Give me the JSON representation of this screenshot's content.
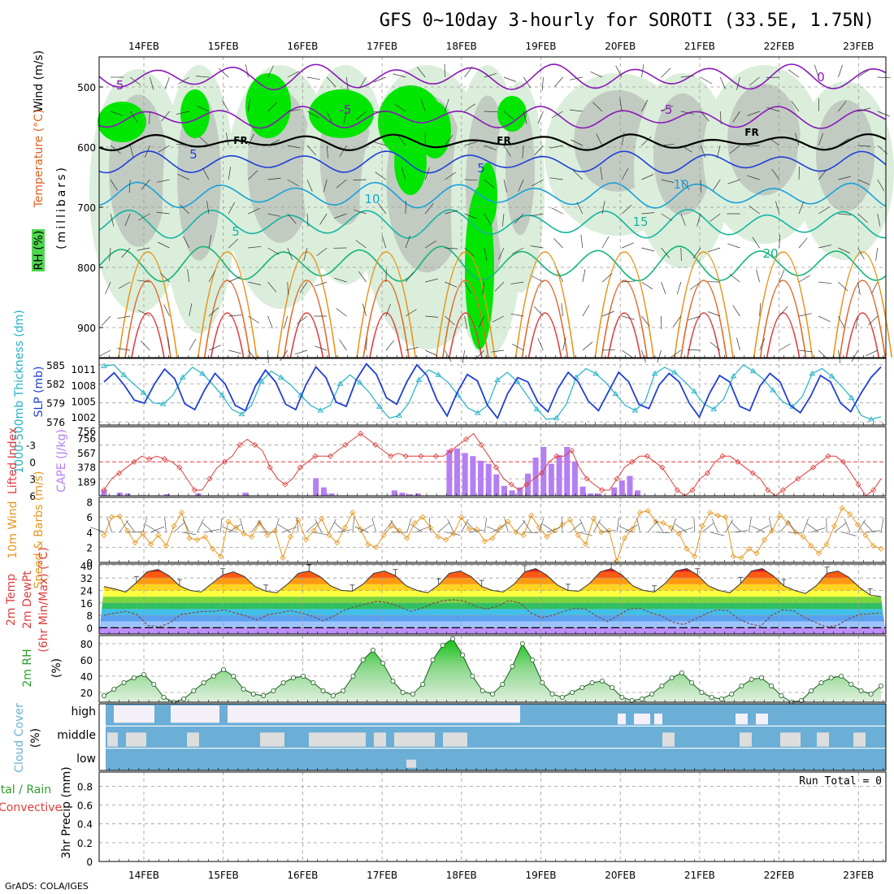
{
  "title": "GFS 0~10day 3-hourly for SOROTI (33.5E, 1.75N)",
  "footer": "GrADS: COLA/IGES",
  "colors": {
    "rh_light": "#dbeedb",
    "rh_mid": "#b8d8b8",
    "rh_gray": "#c2cbc2",
    "rh_green": "#00e600",
    "rh_green2": "#4fd64f",
    "slp": "#1f3fd6",
    "thick": "#22b2c8",
    "li": "#e03c3c",
    "cape": "#b57ff2",
    "wind": "#e8961c",
    "barb": "#555555",
    "dew": "#7a4a4a",
    "cloud_blue": "#6baed6",
    "cloud_white": "#f4f0f8",
    "cloud_gray": "#dddddd",
    "rh2m": "#2ca02c"
  },
  "chart_data": {
    "type": "meteogram",
    "x_dates": [
      "14FEB",
      "15FEB",
      "16FEB",
      "17FEB",
      "18FEB",
      "19FEB",
      "20FEB",
      "21FEB",
      "22FEB",
      "23FEB"
    ],
    "panels": [
      {
        "id": "upper_air",
        "ylabel_parts": [
          {
            "text": "RH (%)",
            "color": "#000000",
            "bg": "#2ca02c"
          },
          {
            "text": "Temperature (°C)",
            "color": "#e06020"
          },
          {
            "text": "Wind (m/s)",
            "color": "#000000"
          }
        ],
        "ylabel2": "(millibars)",
        "yticks": [
          500,
          600,
          700,
          800,
          900
        ],
        "ylim": [
          950,
          450
        ],
        "contour_labels": [
          {
            "text": "-5",
            "color": "#8a18b8"
          },
          {
            "text": "-5",
            "color": "#8a18b8"
          },
          {
            "text": "-5",
            "color": "#8a18b8"
          },
          {
            "text": "0",
            "color": "#8a18b8"
          },
          {
            "text": "FR",
            "color": "#000000"
          },
          {
            "text": "FR",
            "color": "#000000"
          },
          {
            "text": "FR",
            "color": "#000000"
          },
          {
            "text": "5",
            "color": "#1f3fd6"
          },
          {
            "text": "5",
            "color": "#1f3fd6"
          },
          {
            "text": "10",
            "color": "#1aa0d8"
          },
          {
            "text": "10",
            "color": "#1aa0d8"
          },
          {
            "text": "15",
            "color": "#14b4a0"
          },
          {
            "text": "5",
            "color": "#14b4a0"
          },
          {
            "text": "20",
            "color": "#14b478"
          }
        ]
      },
      {
        "id": "slp_thickness",
        "ylabel_left": "1000-500mb Thickness (dm)",
        "ylabel_right": "SLP (mb)",
        "yticks_left": [
          576,
          579,
          582,
          585
        ],
        "yticks_right": [
          1002,
          1005,
          1008,
          1011
        ],
        "slp": [
          1008.6,
          1010.3,
          1008.0,
          1005.2,
          1004.6,
          1008.2,
          1011.0,
          1009.2,
          1004.5,
          1003.4,
          1007.2,
          1010.2,
          1008.2,
          1004.2,
          1003.2,
          1007.8,
          1010.8,
          1008.6,
          1004.4,
          1003.4,
          1008.0,
          1011.4,
          1009.4,
          1004.8,
          1004.0,
          1009.0,
          1012.0,
          1010.0,
          1005.6,
          1004.4,
          1008.6,
          1011.8,
          1009.8,
          1005.2,
          1002.2,
          1006.6,
          1010.0,
          1008.8,
          1004.2,
          1001.8,
          1006.4,
          1009.4,
          1008.6,
          1004.8,
          1003.0,
          1007.4,
          1010.4,
          1008.6,
          1005.0,
          1003.2,
          1006.8,
          1010.4,
          1008.6,
          1004.4,
          1003.6,
          1008.0,
          1010.2,
          1008.6,
          1004.6,
          1002.0,
          1006.4,
          1009.8,
          1008.6,
          1004.0,
          1003.2,
          1007.8,
          1010.2,
          1008.6,
          1004.2,
          1002.8,
          1005.8,
          1009.8,
          1008.6,
          1004.6,
          1003.0,
          1006.4,
          1009.4,
          1011.4
        ],
        "thickness": [
          584.8,
          585.0,
          583.4,
          582.0,
          580.6,
          579.0,
          578.8,
          580.2,
          583.0,
          584.6,
          583.6,
          582.0,
          580.2,
          578.0,
          577.2,
          578.6,
          582.4,
          584.0,
          583.0,
          581.8,
          580.2,
          578.6,
          577.8,
          578.6,
          582.0,
          583.4,
          582.2,
          580.6,
          578.4,
          576.6,
          577.0,
          579.0,
          582.6,
          584.2,
          583.4,
          582.2,
          580.2,
          578.2,
          577.4,
          578.6,
          582.6,
          583.8,
          582.4,
          580.2,
          578.0,
          576.4,
          576.6,
          578.8,
          583.0,
          584.4,
          583.6,
          582.2,
          580.4,
          578.6,
          577.8,
          579.2,
          583.6,
          584.6,
          583.8,
          582.4,
          580.8,
          578.8,
          578.0,
          579.6,
          583.2,
          585.0,
          584.0,
          582.8,
          581.0,
          579.2,
          578.4,
          580.0,
          583.6,
          584.4,
          583.2,
          581.6,
          579.8,
          577.0,
          576.4,
          576.8
        ]
      },
      {
        "id": "li_cape",
        "ylabel_left": "Lifted Index",
        "ylabel_right": "CAPE (J/kg)",
        "yticks_left": [
          -3,
          0,
          3,
          6
        ],
        "yticks_right": [
          189,
          378,
          567,
          756
        ],
        "lifted_index": [
          5,
          3,
          2,
          1,
          0,
          -1,
          -0.5,
          -1,
          -0.5,
          0,
          1,
          3,
          5,
          5,
          3,
          1,
          0,
          -1,
          -3,
          -4,
          -3,
          -2,
          1,
          3,
          4,
          3,
          1,
          0,
          -1,
          -1,
          -1,
          -2,
          -3,
          -4,
          -5,
          -4,
          -3,
          -2,
          -1,
          -1.5,
          -1,
          -1,
          -1,
          -1,
          -1,
          -1,
          -2,
          -3,
          -4,
          -5,
          -3,
          -1,
          1,
          3,
          4,
          5,
          4,
          3,
          2,
          0,
          -1,
          -1,
          -2,
          1,
          3,
          4,
          5,
          5,
          3,
          1,
          0,
          -1,
          -1,
          0,
          1,
          3,
          5,
          6,
          5,
          3,
          2,
          0,
          -1,
          -1,
          0,
          1,
          2,
          3,
          5,
          6,
          5,
          4,
          3,
          2,
          1,
          0,
          -1,
          -1,
          0,
          2,
          4,
          6,
          5,
          3
        ],
        "cape": [
          80,
          0,
          40,
          30,
          0,
          10,
          0,
          0,
          20,
          0,
          0,
          0,
          30,
          0,
          0,
          0,
          0,
          0,
          40,
          0,
          0,
          0,
          0,
          0,
          0,
          0,
          0,
          230,
          110,
          30,
          0,
          0,
          0,
          0,
          0,
          0,
          0,
          70,
          40,
          20,
          30,
          0,
          0,
          0,
          600,
          620,
          560,
          520,
          460,
          420,
          280,
          130,
          70,
          110,
          290,
          500,
          640,
          420,
          530,
          640,
          450,
          120,
          30,
          30,
          0,
          110,
          200,
          260,
          70,
          0,
          0,
          0,
          0,
          0,
          0,
          0,
          0,
          0,
          0,
          0,
          0,
          0,
          0,
          0,
          0,
          0,
          0,
          0,
          0,
          0,
          0,
          0,
          0,
          0,
          0,
          0,
          0,
          0,
          0,
          0
        ]
      },
      {
        "id": "wind10m",
        "ylabel_left": "10m Wind",
        "ylabel_right": "Speed & Barbs (m/s)",
        "yticks": [
          0,
          2,
          4,
          6,
          8
        ],
        "speed": [
          3.6,
          6.0,
          6.1,
          4.2,
          2.6,
          3.8,
          2.4,
          3.6,
          2.2,
          4.8,
          6.6,
          3.2,
          3.0,
          3.4,
          1.8,
          0.8,
          5.4,
          4.6,
          3.8,
          3.4,
          5.2,
          3.6,
          4.2,
          0.6,
          3.4,
          5.6,
          3.0,
          4.2,
          5.8,
          3.6,
          2.6,
          4.6,
          6.6,
          4.4,
          2.4,
          2.0,
          3.6,
          4.8,
          4.2,
          3.2,
          5.2,
          6.0,
          4.6,
          3.4,
          3.0,
          3.8,
          6.0,
          4.4,
          4.4,
          2.8,
          3.2,
          4.6,
          5.4,
          4.0,
          3.6,
          6.2,
          4.6,
          3.4,
          4.2,
          5.0,
          5.6,
          3.6,
          2.4,
          5.8,
          4.0,
          4.2,
          0.2,
          3.2,
          4.4,
          6.6,
          6.8,
          5.4,
          5.2,
          4.6,
          3.8,
          1.8,
          0.8,
          4.8,
          6.6,
          6.2,
          6.0,
          0.8,
          0.6,
          1.8,
          1.2,
          3.0,
          4.2,
          6.2,
          5.2,
          4.0,
          3.4,
          2.2,
          1.2,
          2.4,
          4.8,
          7.2,
          6.4,
          5.0,
          3.6,
          2.2,
          1.8
        ]
      },
      {
        "id": "temp2m",
        "ylabel_left": "2m Temp",
        "ylabel_mid": "2m DewPt",
        "ylabel_right": "(6hr Min/Max) (°C)",
        "yticks": [
          0,
          8,
          16,
          24,
          32,
          40
        ],
        "temp": [
          26.5,
          25.0,
          23.0,
          29.0,
          36.0,
          37.5,
          33.5,
          27.0,
          24.0,
          23.0,
          28.5,
          34.0,
          36.0,
          33.0,
          26.5,
          23.5,
          22.5,
          28.0,
          35.0,
          36.5,
          33.0,
          27.0,
          24.0,
          23.5,
          28.0,
          35.0,
          36.5,
          33.5,
          27.0,
          24.0,
          22.5,
          27.5,
          35.0,
          36.5,
          33.0,
          26.5,
          24.0,
          23.0,
          28.0,
          36.0,
          38.0,
          34.0,
          27.5,
          24.0,
          23.5,
          28.5,
          36.0,
          38.0,
          34.0,
          27.0,
          24.0,
          23.0,
          28.5,
          36.5,
          38.0,
          34.0,
          27.0,
          24.0,
          22.5,
          28.5,
          36.5,
          38.0,
          33.5,
          27.0,
          24.0,
          22.0,
          27.0,
          35.0,
          36.5,
          32.5,
          26.0,
          21.0,
          20.0
        ],
        "dewpt": [
          8.0,
          9.5,
          10.5,
          8.5,
          1.5,
          0.5,
          3.0,
          8.5,
          9.5,
          10.5,
          10.5,
          11.5,
          9.5,
          7.5,
          5.0,
          8.5,
          9.5,
          11.0,
          9.5,
          7.5,
          4.5,
          7.5,
          11.5,
          13.5,
          15.5,
          17.0,
          16.0,
          13.5,
          10.5,
          12.5,
          15.5,
          17.5,
          18.0,
          17.0,
          13.5,
          12.0,
          14.0,
          17.5,
          16.0,
          9.5,
          6.5,
          8.0,
          10.5,
          12.5,
          12.0,
          7.5,
          4.0,
          8.0,
          12.0,
          12.5,
          9.5,
          7.5,
          3.5,
          2.0,
          5.5,
          9.0,
          11.5,
          11.0,
          5.5,
          2.5,
          1.0,
          8.0,
          11.5,
          11.0,
          6.5,
          3.5,
          0.5,
          1.5,
          5.5,
          8.5,
          9.0,
          9.5
        ]
      },
      {
        "id": "rh2m",
        "ylabel_left": "2m RH",
        "ylabel_right": "(%)",
        "yticks": [
          20,
          40,
          60,
          80
        ],
        "rh": [
          16,
          24,
          32,
          38,
          42,
          30,
          14,
          8,
          12,
          22,
          32,
          40,
          48,
          40,
          24,
          18,
          16,
          22,
          32,
          38,
          40,
          32,
          22,
          16,
          22,
          40,
          60,
          72,
          56,
          34,
          20,
          18,
          30,
          60,
          78,
          86,
          66,
          40,
          22,
          18,
          30,
          52,
          80,
          60,
          32,
          18,
          14,
          20,
          26,
          32,
          34,
          26,
          14,
          10,
          12,
          18,
          28,
          38,
          44,
          32,
          20,
          14,
          12,
          18,
          28,
          36,
          38,
          28,
          16,
          8,
          10,
          22,
          32,
          38,
          40,
          30,
          22,
          18,
          28
        ]
      },
      {
        "id": "cloud_cover",
        "ylabel_left": "Cloud Cover",
        "ylabel_right": "(%)",
        "levels": [
          "high",
          "middle",
          "low"
        ]
      },
      {
        "id": "precip",
        "ylabel_left": "Total / Rain",
        "ylabel_left2": "Convective",
        "ylabel_right": "3hr Precip (mm)",
        "yticks": [
          0,
          0.2,
          0.4,
          0.6,
          0.8
        ],
        "run_total": "Run Total = 0",
        "values": []
      }
    ]
  }
}
